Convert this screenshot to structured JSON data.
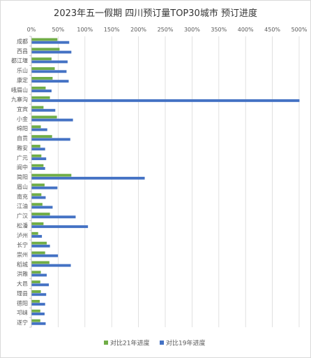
{
  "chart_data": {
    "type": "bar",
    "orientation": "horizontal",
    "title": "2023年五一假期 四川预订量TOP30城市 预订进度",
    "xlim": [
      0,
      500
    ],
    "x_ticks": [
      "0%",
      "50%",
      "100%",
      "150%",
      "200%",
      "250%",
      "300%",
      "350%",
      "400%",
      "450%",
      "500%"
    ],
    "x_axis_position": "top",
    "grid": true,
    "legend_position": "bottom",
    "categories": [
      "成都",
      "西昌",
      "都江堰",
      "乐山",
      "康定",
      "峨眉山",
      "九寨沟",
      "宜宾",
      "小金",
      "绵阳",
      "自贡",
      "雅安",
      "广元",
      "阆中",
      "简阳",
      "眉山",
      "南充",
      "江油",
      "广汉",
      "松潘",
      "泸州",
      "长宁",
      "崇州",
      "稻城",
      "洪雅",
      "大邑",
      "理县",
      "德阳",
      "邛崃",
      "遂宁"
    ],
    "series": [
      {
        "name": "对比21年进度",
        "color": "#70ad47",
        "values": [
          48,
          52,
          37,
          43,
          39,
          26,
          34,
          22,
          47,
          17,
          38,
          16,
          18,
          22,
          74,
          24,
          18,
          20,
          34,
          22,
          12,
          28,
          25,
          33,
          17,
          16,
          17,
          15,
          16,
          16
        ]
      },
      {
        "name": "对比19年进度",
        "color": "#4472c4",
        "values": [
          70,
          74,
          67,
          65,
          69,
          37,
          500,
          44,
          77,
          29,
          72,
          25,
          27,
          25,
          211,
          48,
          26,
          39,
          82,
          105,
          19,
          34,
          49,
          73,
          28,
          32,
          27,
          25,
          24,
          26
        ]
      }
    ]
  }
}
